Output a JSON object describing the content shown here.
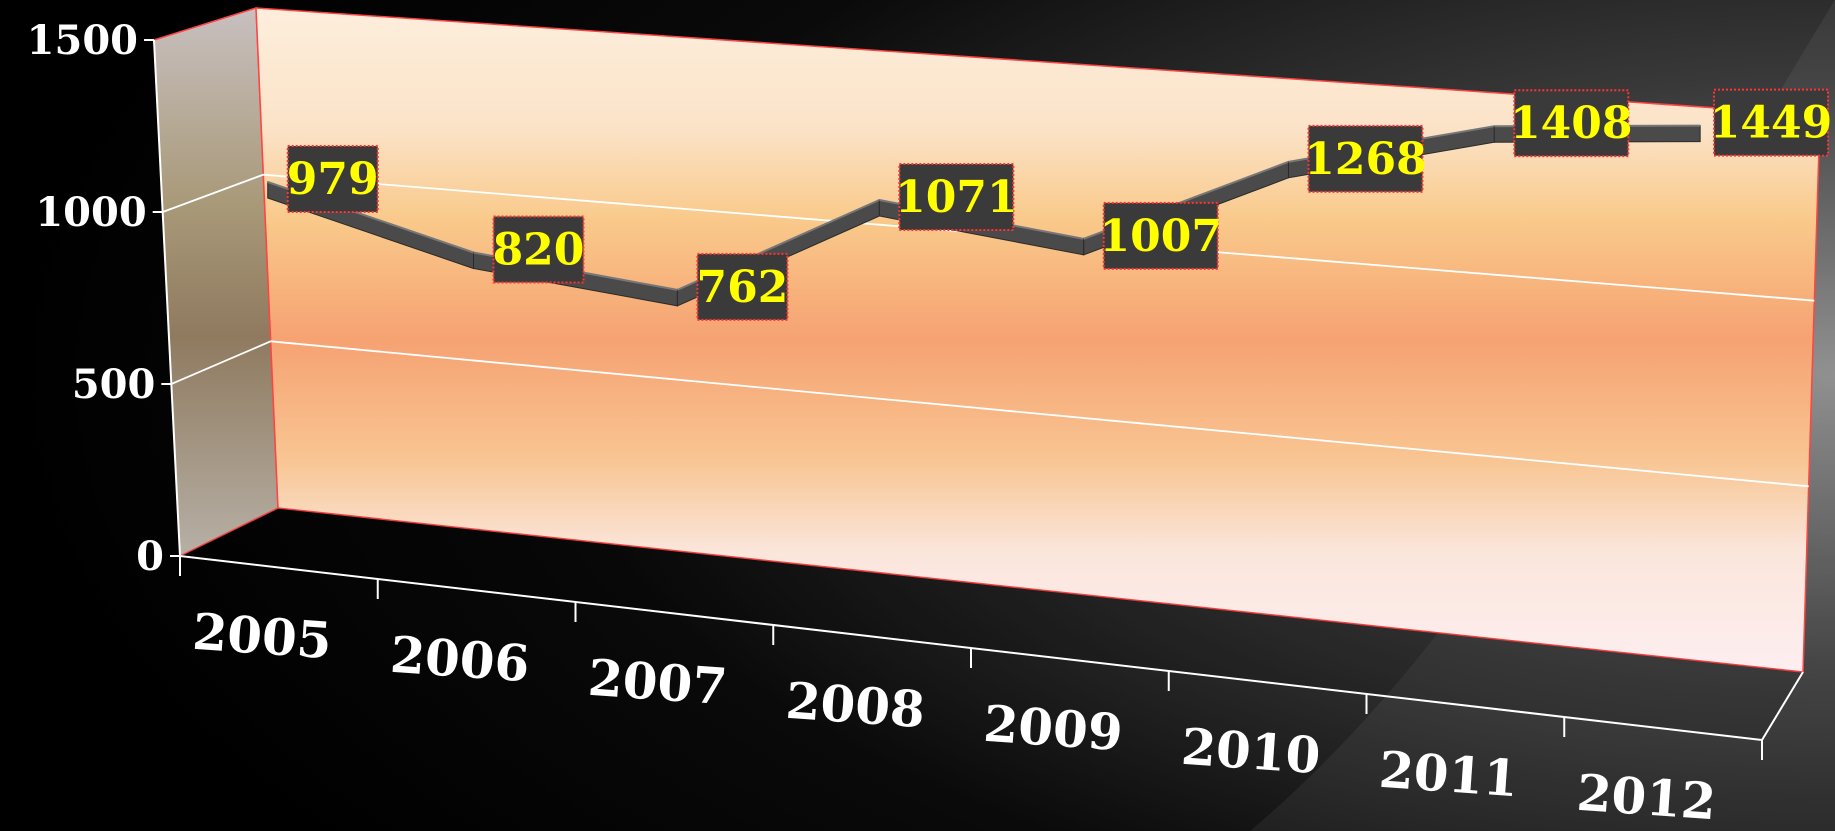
{
  "chart_data": {
    "type": "line",
    "style": "3d",
    "categories": [
      "2005",
      "2006",
      "2007",
      "2008",
      "2009",
      "2010",
      "2011",
      "2012"
    ],
    "series": [
      {
        "values": [
          979,
          820,
          762,
          1071,
          1007,
          1268,
          1408,
          1449
        ]
      }
    ],
    "ylim": [
      0,
      1500
    ],
    "yticks": [
      0,
      500,
      1000,
      1500
    ],
    "grid": true,
    "legend": "none",
    "data_labels": true,
    "colors": {
      "background": "#000000",
      "line": "#4a4a4a",
      "label_box": "#3a3a3a",
      "label_border": "#ff3333",
      "label_text": "#ffff00",
      "axis_text": "#ffffff"
    }
  }
}
